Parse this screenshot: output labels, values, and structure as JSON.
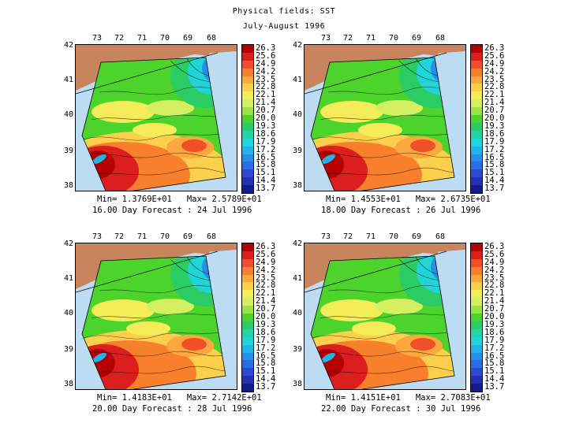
{
  "title": "Physical fields: SST",
  "subtitle": "July-August 1996",
  "colors": {
    "ocean_background": "#bcdcf4",
    "land": "#c8845c"
  },
  "lon_labels": [
    "73",
    "72",
    "71",
    "70",
    "69",
    "68"
  ],
  "lat_labels": [
    "42",
    "41",
    "40",
    "39",
    "38"
  ],
  "colorbar": {
    "levels": [
      "26.3",
      "25.6",
      "24.9",
      "24.2",
      "23.5",
      "22.8",
      "22.1",
      "21.4",
      "20.7",
      "20.0",
      "19.3",
      "18.6",
      "17.9",
      "17.2",
      "16.5",
      "15.8",
      "15.1",
      "14.4",
      "13.7"
    ],
    "colors": [
      "#b40000",
      "#dc1e1e",
      "#f05028",
      "#f8802c",
      "#fca83c",
      "#fcd04c",
      "#f4ec58",
      "#d4f060",
      "#9ce444",
      "#4cd42c",
      "#2ccc64",
      "#24d4a8",
      "#20d4d8",
      "#20b4e8",
      "#2490ec",
      "#2c6ce4",
      "#2c48d4",
      "#2430b4",
      "#141c8c"
    ]
  },
  "panels": [
    {
      "min_label": "Min=",
      "min_value": "1.3769E+01",
      "max_label": "Max=",
      "max_value": "2.5789E+01",
      "forecast": "16.00 Day Forecast : 24 Jul 1996"
    },
    {
      "min_label": "Min=",
      "min_value": "1.4553E+01",
      "max_label": "Max=",
      "max_value": "2.6735E+01",
      "forecast": "18.00 Day Forecast : 26 Jul 1996"
    },
    {
      "min_label": "Min=",
      "min_value": "1.4183E+01",
      "max_label": "Max=",
      "max_value": "2.7142E+01",
      "forecast": "20.00 Day Forecast : 28 Jul 1996"
    },
    {
      "min_label": "Min=",
      "min_value": "1.4151E+01",
      "max_label": "Max=",
      "max_value": "2.7083E+01",
      "forecast": "22.00 Day Forecast : 30 Jul 1996"
    }
  ]
}
